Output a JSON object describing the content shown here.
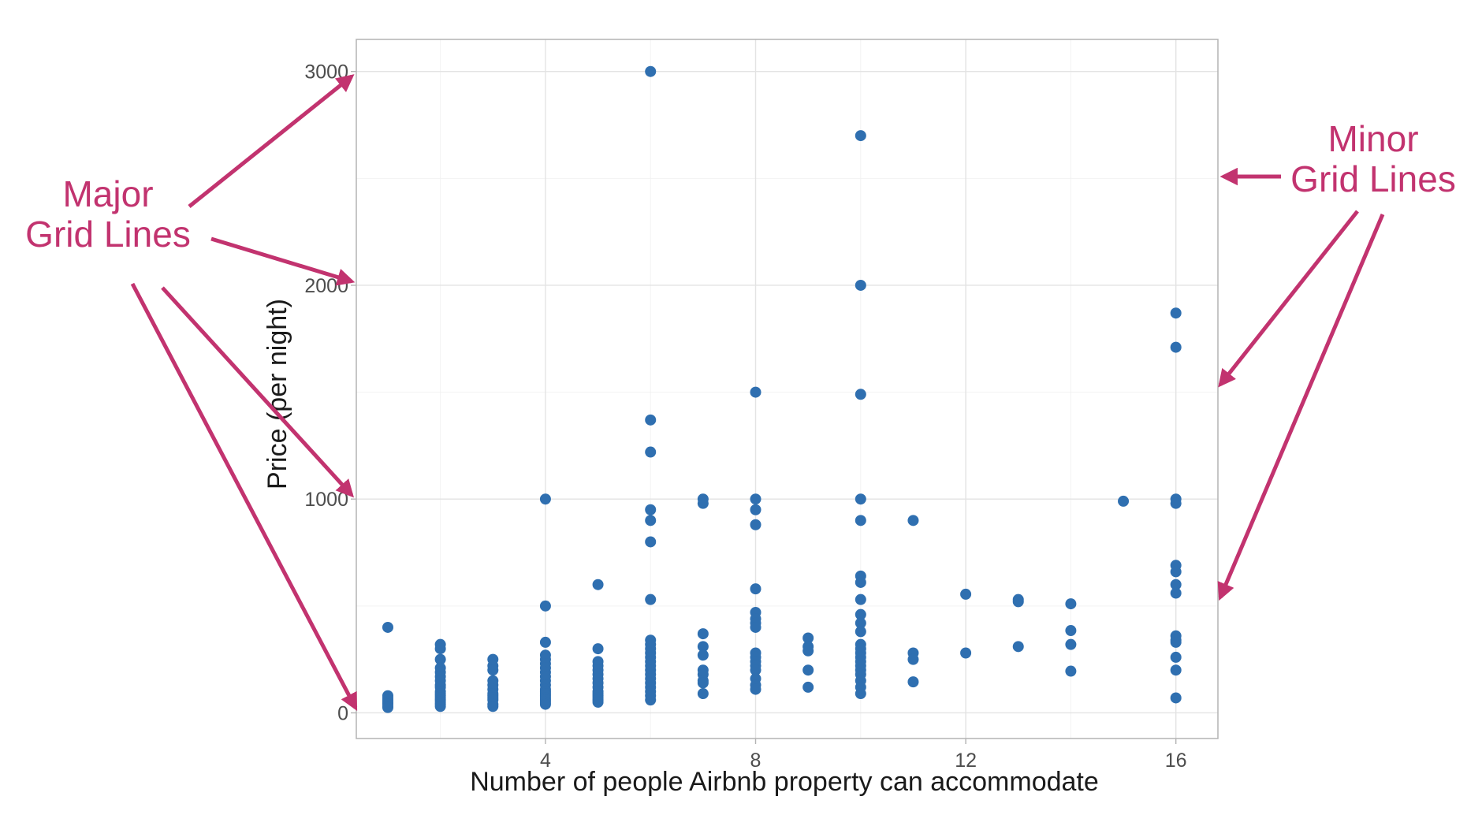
{
  "chart_data": {
    "type": "scatter",
    "title": "",
    "xlabel": "Number of people Airbnb property can accommodate",
    "ylabel": "Price (per night)",
    "xlim": [
      0.4,
      16.8
    ],
    "ylim": [
      -120,
      3150
    ],
    "x_ticks": [
      4,
      8,
      12,
      16
    ],
    "x_tick_labels": [
      "4",
      "8",
      "12",
      "16"
    ],
    "y_ticks": [
      0,
      1000,
      2000,
      3000
    ],
    "y_tick_labels": [
      "0",
      "1000",
      "2000",
      "3000"
    ],
    "x_minor_gridlines": [
      2,
      6,
      10,
      14
    ],
    "y_minor_gridlines": [
      500,
      1500,
      2500
    ],
    "grid": true,
    "point_color": "#2f6fb0",
    "points": [
      [
        1,
        400
      ],
      [
        1,
        80
      ],
      [
        1,
        70
      ],
      [
        1,
        60
      ],
      [
        1,
        50
      ],
      [
        1,
        45
      ],
      [
        1,
        40
      ],
      [
        1,
        30
      ],
      [
        1,
        25
      ],
      [
        2,
        320
      ],
      [
        2,
        300
      ],
      [
        2,
        250
      ],
      [
        2,
        210
      ],
      [
        2,
        190
      ],
      [
        2,
        170
      ],
      [
        2,
        150
      ],
      [
        2,
        130
      ],
      [
        2,
        120
      ],
      [
        2,
        100
      ],
      [
        2,
        90
      ],
      [
        2,
        80
      ],
      [
        2,
        70
      ],
      [
        2,
        60
      ],
      [
        2,
        50
      ],
      [
        2,
        40
      ],
      [
        2,
        30
      ],
      [
        3,
        250
      ],
      [
        3,
        220
      ],
      [
        3,
        200
      ],
      [
        3,
        150
      ],
      [
        3,
        130
      ],
      [
        3,
        110
      ],
      [
        3,
        90
      ],
      [
        3,
        80
      ],
      [
        3,
        70
      ],
      [
        3,
        60
      ],
      [
        3,
        40
      ],
      [
        3,
        30
      ],
      [
        4,
        1000
      ],
      [
        4,
        500
      ],
      [
        4,
        330
      ],
      [
        4,
        270
      ],
      [
        4,
        250
      ],
      [
        4,
        230
      ],
      [
        4,
        210
      ],
      [
        4,
        190
      ],
      [
        4,
        170
      ],
      [
        4,
        150
      ],
      [
        4,
        130
      ],
      [
        4,
        110
      ],
      [
        4,
        100
      ],
      [
        4,
        90
      ],
      [
        4,
        80
      ],
      [
        4,
        70
      ],
      [
        4,
        60
      ],
      [
        4,
        50
      ],
      [
        4,
        40
      ],
      [
        5,
        600
      ],
      [
        5,
        300
      ],
      [
        5,
        240
      ],
      [
        5,
        220
      ],
      [
        5,
        200
      ],
      [
        5,
        180
      ],
      [
        5,
        160
      ],
      [
        5,
        140
      ],
      [
        5,
        120
      ],
      [
        5,
        100
      ],
      [
        5,
        90
      ],
      [
        5,
        80
      ],
      [
        5,
        70
      ],
      [
        5,
        60
      ],
      [
        5,
        50
      ],
      [
        6,
        3000
      ],
      [
        6,
        1370
      ],
      [
        6,
        1220
      ],
      [
        6,
        950
      ],
      [
        6,
        900
      ],
      [
        6,
        800
      ],
      [
        6,
        530
      ],
      [
        6,
        340
      ],
      [
        6,
        320
      ],
      [
        6,
        300
      ],
      [
        6,
        280
      ],
      [
        6,
        260
      ],
      [
        6,
        240
      ],
      [
        6,
        220
      ],
      [
        6,
        200
      ],
      [
        6,
        180
      ],
      [
        6,
        160
      ],
      [
        6,
        140
      ],
      [
        6,
        120
      ],
      [
        6,
        100
      ],
      [
        6,
        80
      ],
      [
        6,
        60
      ],
      [
        7,
        1000
      ],
      [
        7,
        980
      ],
      [
        7,
        370
      ],
      [
        7,
        310
      ],
      [
        7,
        270
      ],
      [
        7,
        200
      ],
      [
        7,
        180
      ],
      [
        7,
        150
      ],
      [
        7,
        140
      ],
      [
        7,
        90
      ],
      [
        8,
        1500
      ],
      [
        8,
        1000
      ],
      [
        8,
        950
      ],
      [
        8,
        880
      ],
      [
        8,
        580
      ],
      [
        8,
        470
      ],
      [
        8,
        440
      ],
      [
        8,
        420
      ],
      [
        8,
        400
      ],
      [
        8,
        280
      ],
      [
        8,
        260
      ],
      [
        8,
        240
      ],
      [
        8,
        220
      ],
      [
        8,
        200
      ],
      [
        8,
        160
      ],
      [
        8,
        130
      ],
      [
        8,
        110
      ],
      [
        9,
        350
      ],
      [
        9,
        310
      ],
      [
        9,
        290
      ],
      [
        9,
        200
      ],
      [
        9,
        120
      ],
      [
        10,
        2700
      ],
      [
        10,
        2000
      ],
      [
        10,
        1490
      ],
      [
        10,
        1000
      ],
      [
        10,
        900
      ],
      [
        10,
        640
      ],
      [
        10,
        610
      ],
      [
        10,
        530
      ],
      [
        10,
        460
      ],
      [
        10,
        420
      ],
      [
        10,
        380
      ],
      [
        10,
        320
      ],
      [
        10,
        300
      ],
      [
        10,
        280
      ],
      [
        10,
        260
      ],
      [
        10,
        240
      ],
      [
        10,
        220
      ],
      [
        10,
        200
      ],
      [
        10,
        180
      ],
      [
        10,
        150
      ],
      [
        10,
        120
      ],
      [
        10,
        90
      ],
      [
        11,
        900
      ],
      [
        11,
        280
      ],
      [
        11,
        250
      ],
      [
        11,
        145
      ],
      [
        12,
        555
      ],
      [
        12,
        280
      ],
      [
        13,
        530
      ],
      [
        13,
        520
      ],
      [
        13,
        310
      ],
      [
        14,
        510
      ],
      [
        14,
        385
      ],
      [
        14,
        320
      ],
      [
        14,
        195
      ],
      [
        15,
        990
      ],
      [
        16,
        1870
      ],
      [
        16,
        1710
      ],
      [
        16,
        1000
      ],
      [
        16,
        980
      ],
      [
        16,
        690
      ],
      [
        16,
        660
      ],
      [
        16,
        600
      ],
      [
        16,
        560
      ],
      [
        16,
        360
      ],
      [
        16,
        340
      ],
      [
        16,
        330
      ],
      [
        16,
        260
      ],
      [
        16,
        200
      ],
      [
        16,
        70
      ]
    ]
  },
  "annotations": {
    "major_label_line1": "Major",
    "major_label_line2": "Grid Lines",
    "minor_label_line1": "Minor",
    "minor_label_line2": "Grid Lines",
    "color": "#c2336f"
  }
}
